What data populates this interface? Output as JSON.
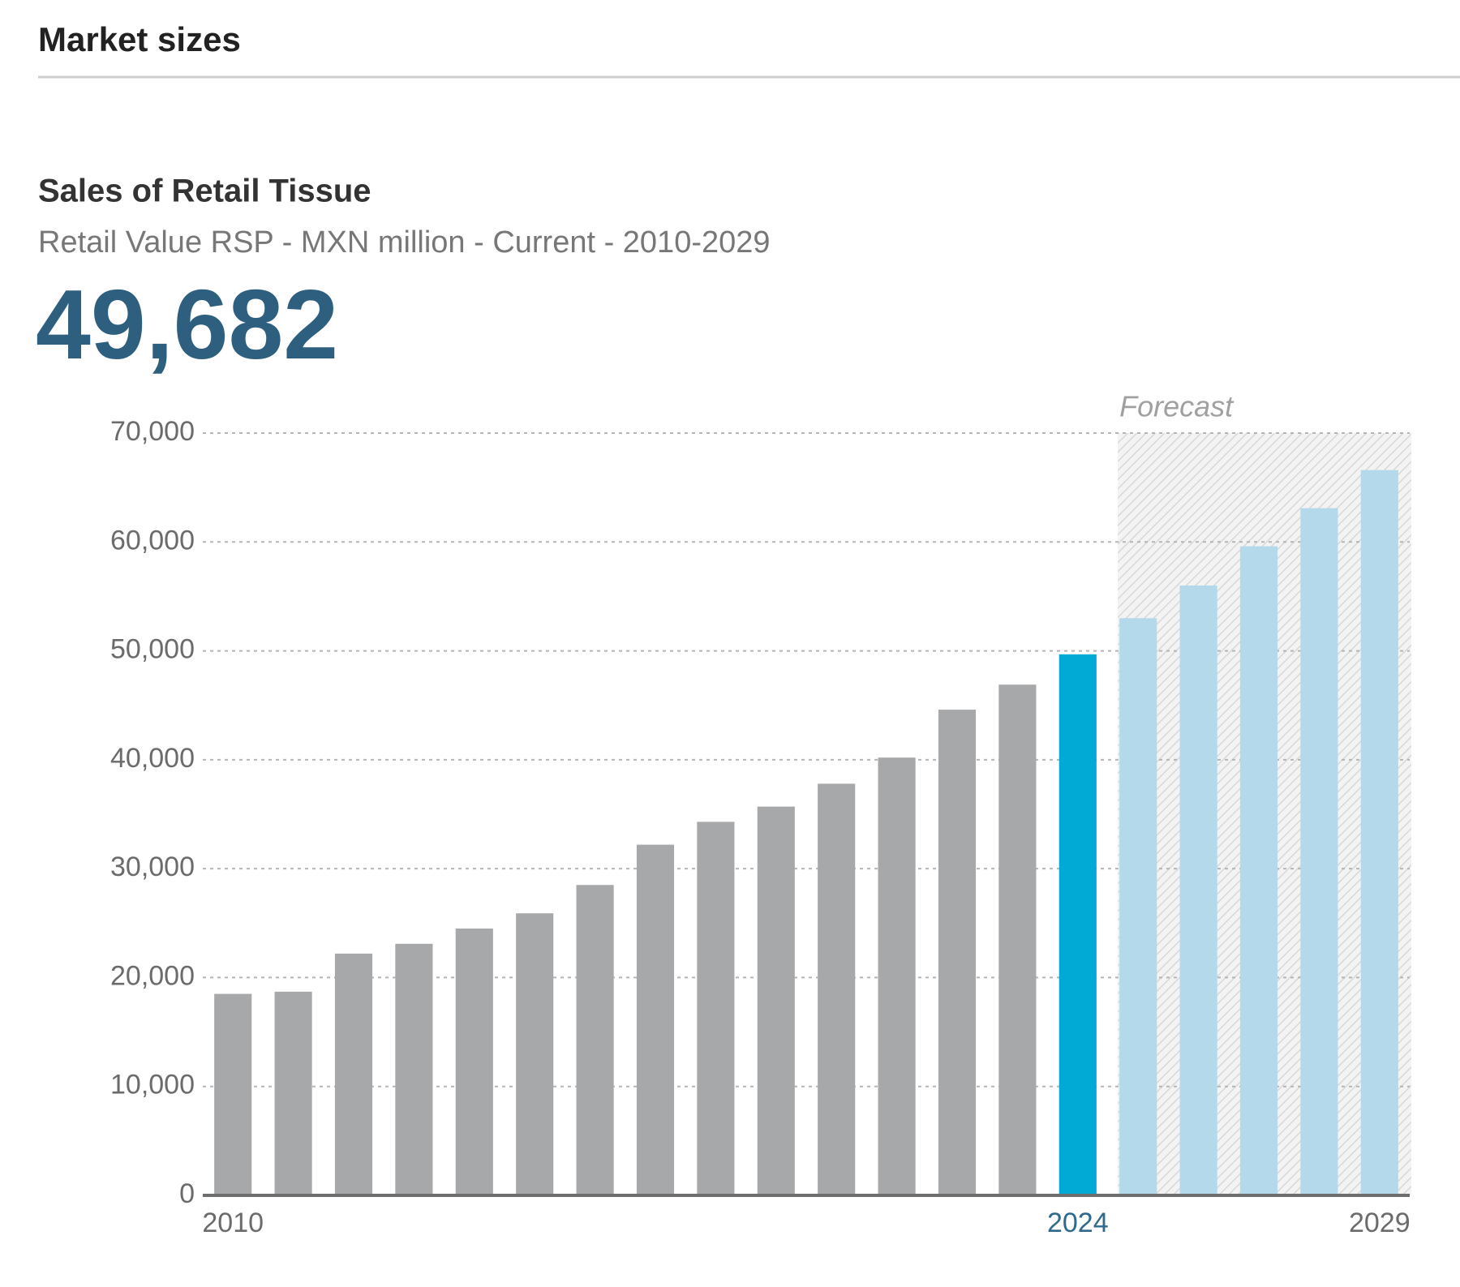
{
  "header": {
    "title": "Market sizes"
  },
  "chart_data": {
    "type": "bar",
    "title": "Sales of Retail Tissue",
    "subtitle": "Retail Value RSP - MXN million - Current - 2010-2029",
    "headline": "49,682",
    "annotation": "Forecast",
    "categories": [
      "2010",
      null,
      null,
      null,
      null,
      null,
      null,
      null,
      null,
      null,
      null,
      null,
      null,
      null,
      "2024",
      null,
      null,
      null,
      null,
      "2029"
    ],
    "values": [
      18500,
      18700,
      22200,
      23100,
      24500,
      25900,
      28500,
      32200,
      34300,
      35700,
      37800,
      40200,
      44600,
      46900,
      49682,
      53000,
      56000,
      59600,
      63100,
      66600
    ],
    "colors": [
      "#a7a8aa",
      "#a7a8aa",
      "#a7a8aa",
      "#a7a8aa",
      "#a7a8aa",
      "#a7a8aa",
      "#a7a8aa",
      "#a7a8aa",
      "#a7a8aa",
      "#a7a8aa",
      "#a7a8aa",
      "#a7a8aa",
      "#a7a8aa",
      "#a7a8aa",
      "#00aad4",
      "#b3d9ea",
      "#b3d9ea",
      "#b3d9ea",
      "#b3d9ea",
      "#b3d9ea"
    ],
    "ylim": [
      0,
      70000
    ],
    "yticks": [
      0,
      {
        "value": 10000,
        "label": "10,000"
      },
      {
        "value": 20000,
        "label": "20,000"
      },
      {
        "value": 30000,
        "label": "30,000"
      },
      {
        "value": 40000,
        "label": "40,000"
      },
      {
        "value": 50000,
        "label": "50,000"
      },
      {
        "value": 60000,
        "label": "60,000"
      },
      {
        "value": 70000,
        "label": "70,000"
      }
    ],
    "grid": true
  }
}
